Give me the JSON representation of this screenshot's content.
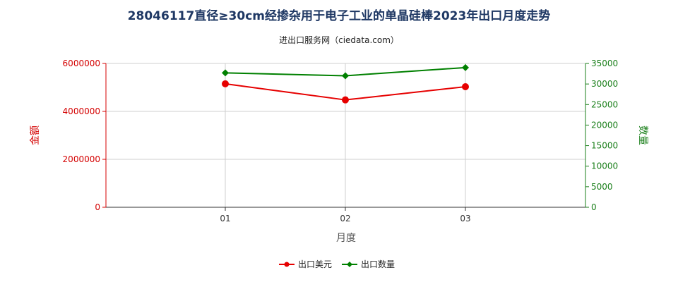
{
  "chart_data": {
    "type": "line",
    "title": "28046117直径≥30cm经掺杂用于电子工业的单晶硅棒2023年出口月度走势",
    "subtitle": "进出口服务网（ciedata.com）",
    "xlabel": "月度",
    "ylabel_left": "金额",
    "ylabel_right": "数量",
    "categories": [
      "01",
      "02",
      "03"
    ],
    "ylim_left": [
      0,
      6000000
    ],
    "yticks_left": [
      "0",
      "2000000",
      "4000000",
      "6000000"
    ],
    "ylim_right": [
      0,
      35000
    ],
    "yticks_right": [
      "0",
      "5000",
      "10000",
      "15000",
      "20000",
      "25000",
      "30000",
      "35000"
    ],
    "grid": true,
    "legend_position": "bottom-center",
    "series": [
      {
        "name": "出口美元",
        "axis": "left",
        "color": "#e60000",
        "marker": "circle",
        "values": [
          5150000,
          4480000,
          5030000
        ]
      },
      {
        "name": "出口数量",
        "axis": "right",
        "color": "#008000",
        "marker": "diamond",
        "values": [
          32700,
          32000,
          34000
        ]
      }
    ]
  }
}
